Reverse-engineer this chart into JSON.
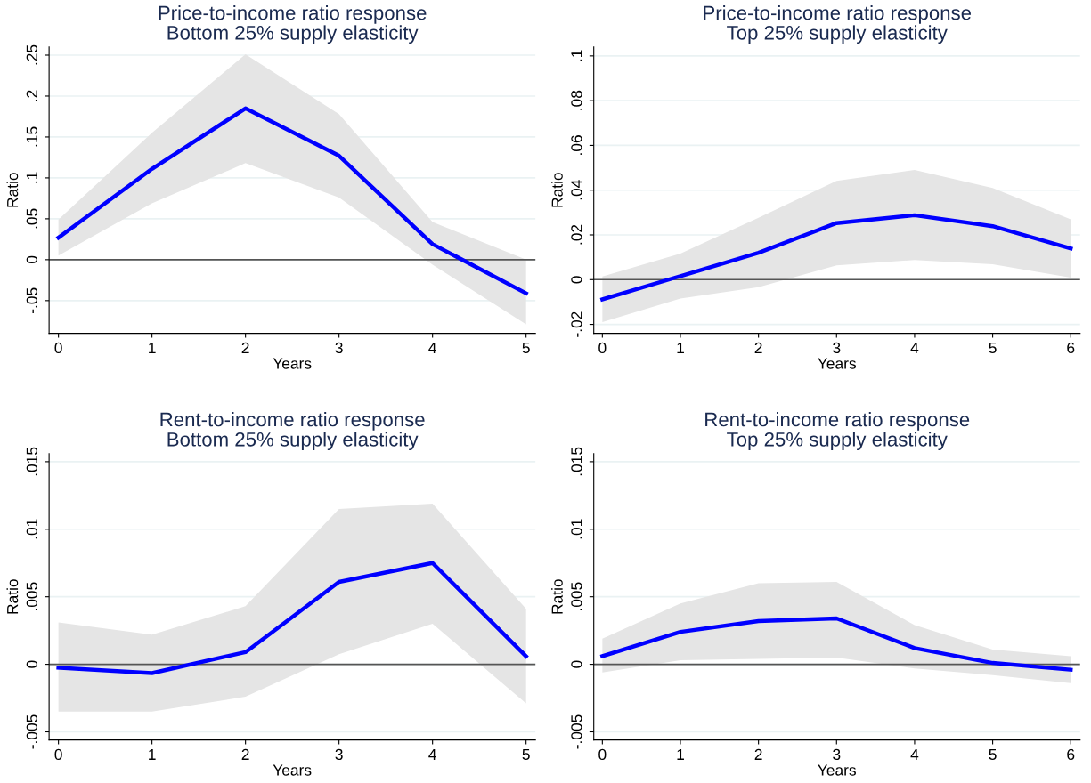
{
  "chart_data": [
    {
      "type": "line",
      "title": "Price-to-income ratio response\nBottom 25% supply elasticity",
      "xlabel": "Years",
      "ylabel": "Ratio",
      "x": [
        0,
        1,
        2,
        3,
        4,
        5
      ],
      "series": [
        {
          "color": "#0000ff",
          "values": [
            0.027,
            0.111,
            0.185,
            0.127,
            0.019,
            -0.041
          ],
          "lower": [
            0.005,
            0.069,
            0.118,
            0.076,
            -0.006,
            -0.079
          ],
          "upper": [
            0.049,
            0.155,
            0.251,
            0.178,
            0.046,
            0.0
          ]
        }
      ],
      "xlim": [
        -0.1,
        5.1
      ],
      "xticks": [
        0,
        1,
        2,
        3,
        4,
        5
      ],
      "ylim": [
        -0.09,
        0.26
      ],
      "yticks": [
        {
          "value": -0.05,
          "label": "-.05"
        },
        0,
        {
          "value": 0.05,
          "label": ".05"
        },
        {
          "value": 0.1,
          "label": ".1"
        },
        {
          "value": 0.15,
          "label": ".15"
        },
        {
          "value": 0.2,
          "label": ".2"
        },
        {
          "value": 0.25,
          "label": ".25"
        }
      ],
      "ref_lines": [
        {
          "axis": "y",
          "value": 0,
          "color": "#555555"
        }
      ],
      "grid": "y"
    },
    {
      "type": "line",
      "title": "Price-to-income ratio response\nTop 25% supply elasticity",
      "xlabel": "Years",
      "ylabel": "Ratio",
      "x": [
        0,
        1,
        2,
        3,
        4,
        5,
        6
      ],
      "series": [
        {
          "color": "#0000ff",
          "values": [
            -0.0088,
            0.0016,
            0.012,
            0.0253,
            0.0288,
            0.0239,
            0.0139
          ],
          "lower": [
            -0.019,
            -0.0084,
            -0.0034,
            0.0064,
            0.0088,
            0.0069,
            0.0009
          ],
          "upper": [
            0.0014,
            0.0116,
            0.0277,
            0.0442,
            0.049,
            0.041,
            0.027
          ]
        }
      ],
      "xlim": [
        -0.11,
        6.12
      ],
      "xticks": [
        0,
        1,
        2,
        3,
        4,
        5,
        6
      ],
      "ylim": [
        -0.024,
        0.104
      ],
      "yticks": [
        {
          "value": -0.02,
          "label": "-.02"
        },
        0,
        {
          "value": 0.02,
          "label": ".02"
        },
        {
          "value": 0.04,
          "label": ".04"
        },
        {
          "value": 0.06,
          "label": ".06"
        },
        {
          "value": 0.08,
          "label": ".08"
        },
        {
          "value": 0.1,
          "label": ".1"
        }
      ],
      "ref_lines": [
        {
          "axis": "y",
          "value": 0,
          "color": "#555555"
        }
      ],
      "grid": "y"
    },
    {
      "type": "line",
      "title": "Rent-to-income ratio response\nBottom 25% supply elasticity",
      "xlabel": "Years",
      "ylabel": "Ratio",
      "x": [
        0,
        1,
        2,
        3,
        4,
        5
      ],
      "series": [
        {
          "color": "#0000ff",
          "values": [
            -0.00025,
            -0.00065,
            0.0009,
            0.0061,
            0.0075,
            0.0006
          ],
          "lower": [
            -0.0035,
            -0.0035,
            -0.0024,
            0.00075,
            0.003,
            -0.0029
          ],
          "upper": [
            0.0031,
            0.0022,
            0.0043,
            0.0115,
            0.0119,
            0.0041
          ]
        }
      ],
      "xlim": [
        -0.1,
        5.1
      ],
      "xticks": [
        0,
        1,
        2,
        3,
        4,
        5
      ],
      "ylim": [
        -0.0056,
        0.0156
      ],
      "yticks": [
        {
          "value": -0.005,
          "label": "-.005"
        },
        0,
        {
          "value": 0.005,
          "label": ".005"
        },
        {
          "value": 0.01,
          "label": ".01"
        },
        {
          "value": 0.015,
          "label": ".015"
        }
      ],
      "ref_lines": [
        {
          "axis": "y",
          "value": 0,
          "color": "#555555"
        }
      ],
      "grid": "y"
    },
    {
      "type": "line",
      "title": "Rent-to-income ratio response\nTop 25% supply elasticity",
      "xlabel": "Years",
      "ylabel": "Ratio",
      "x": [
        0,
        1,
        2,
        3,
        4,
        5,
        6
      ],
      "series": [
        {
          "color": "#0000ff",
          "values": [
            0.0006,
            0.0024,
            0.0032,
            0.0034,
            0.0012,
            0.0001,
            -0.0004
          ],
          "lower": [
            -0.0006,
            0.0003,
            0.0004,
            0.0005,
            -0.0003,
            -0.0008,
            -0.0014
          ],
          "upper": [
            0.0019,
            0.0045,
            0.006,
            0.0061,
            0.0029,
            0.0011,
            0.0006
          ]
        }
      ],
      "xlim": [
        -0.11,
        6.12
      ],
      "xticks": [
        0,
        1,
        2,
        3,
        4,
        5,
        6
      ],
      "ylim": [
        -0.0056,
        0.0156
      ],
      "yticks": [
        {
          "value": -0.005,
          "label": "-.005"
        },
        0,
        {
          "value": 0.005,
          "label": ".005"
        },
        {
          "value": 0.01,
          "label": ".01"
        },
        {
          "value": 0.015,
          "label": ".015"
        }
      ],
      "ref_lines": [
        {
          "axis": "y",
          "value": 0,
          "color": "#555555"
        }
      ],
      "grid": "y"
    }
  ]
}
